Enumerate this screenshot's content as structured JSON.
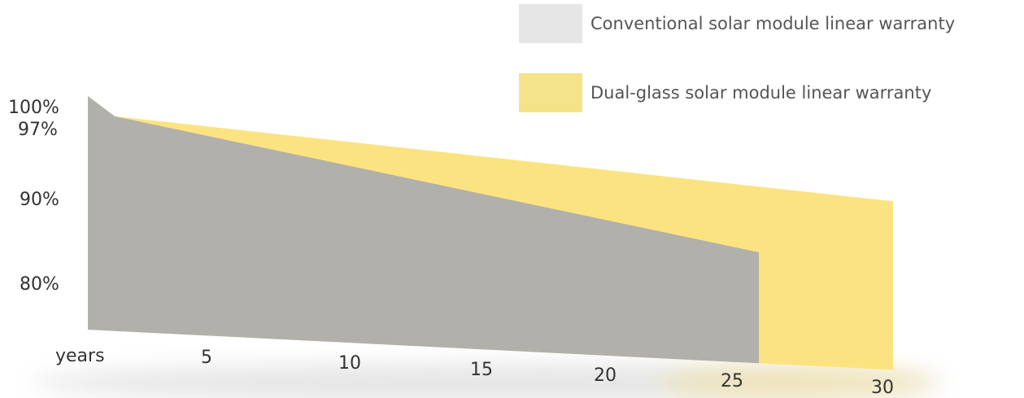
{
  "chart_data": {
    "type": "area",
    "title": "",
    "xlabel": "years",
    "ylabel": "",
    "x_ticks": [
      "5",
      "10",
      "15",
      "20",
      "25",
      "30"
    ],
    "y_ticks": [
      "100%",
      "97%",
      "90%",
      "80%"
    ],
    "grid": false,
    "legend_position": "top-right",
    "series": [
      {
        "name": "Dual-glass solar module linear warranty",
        "color": "#FCE382",
        "x": [
          0,
          1,
          30
        ],
        "y": [
          100,
          97.5,
          87
        ]
      },
      {
        "name": "Conventional solar module linear warranty",
        "color": "#B1B0AA",
        "x": [
          0,
          1,
          25
        ],
        "y": [
          100,
          97.5,
          80.7
        ]
      }
    ],
    "legend_colors": {
      "conventional": "#E6E6E6",
      "dual_glass": "#F5E38A"
    }
  }
}
